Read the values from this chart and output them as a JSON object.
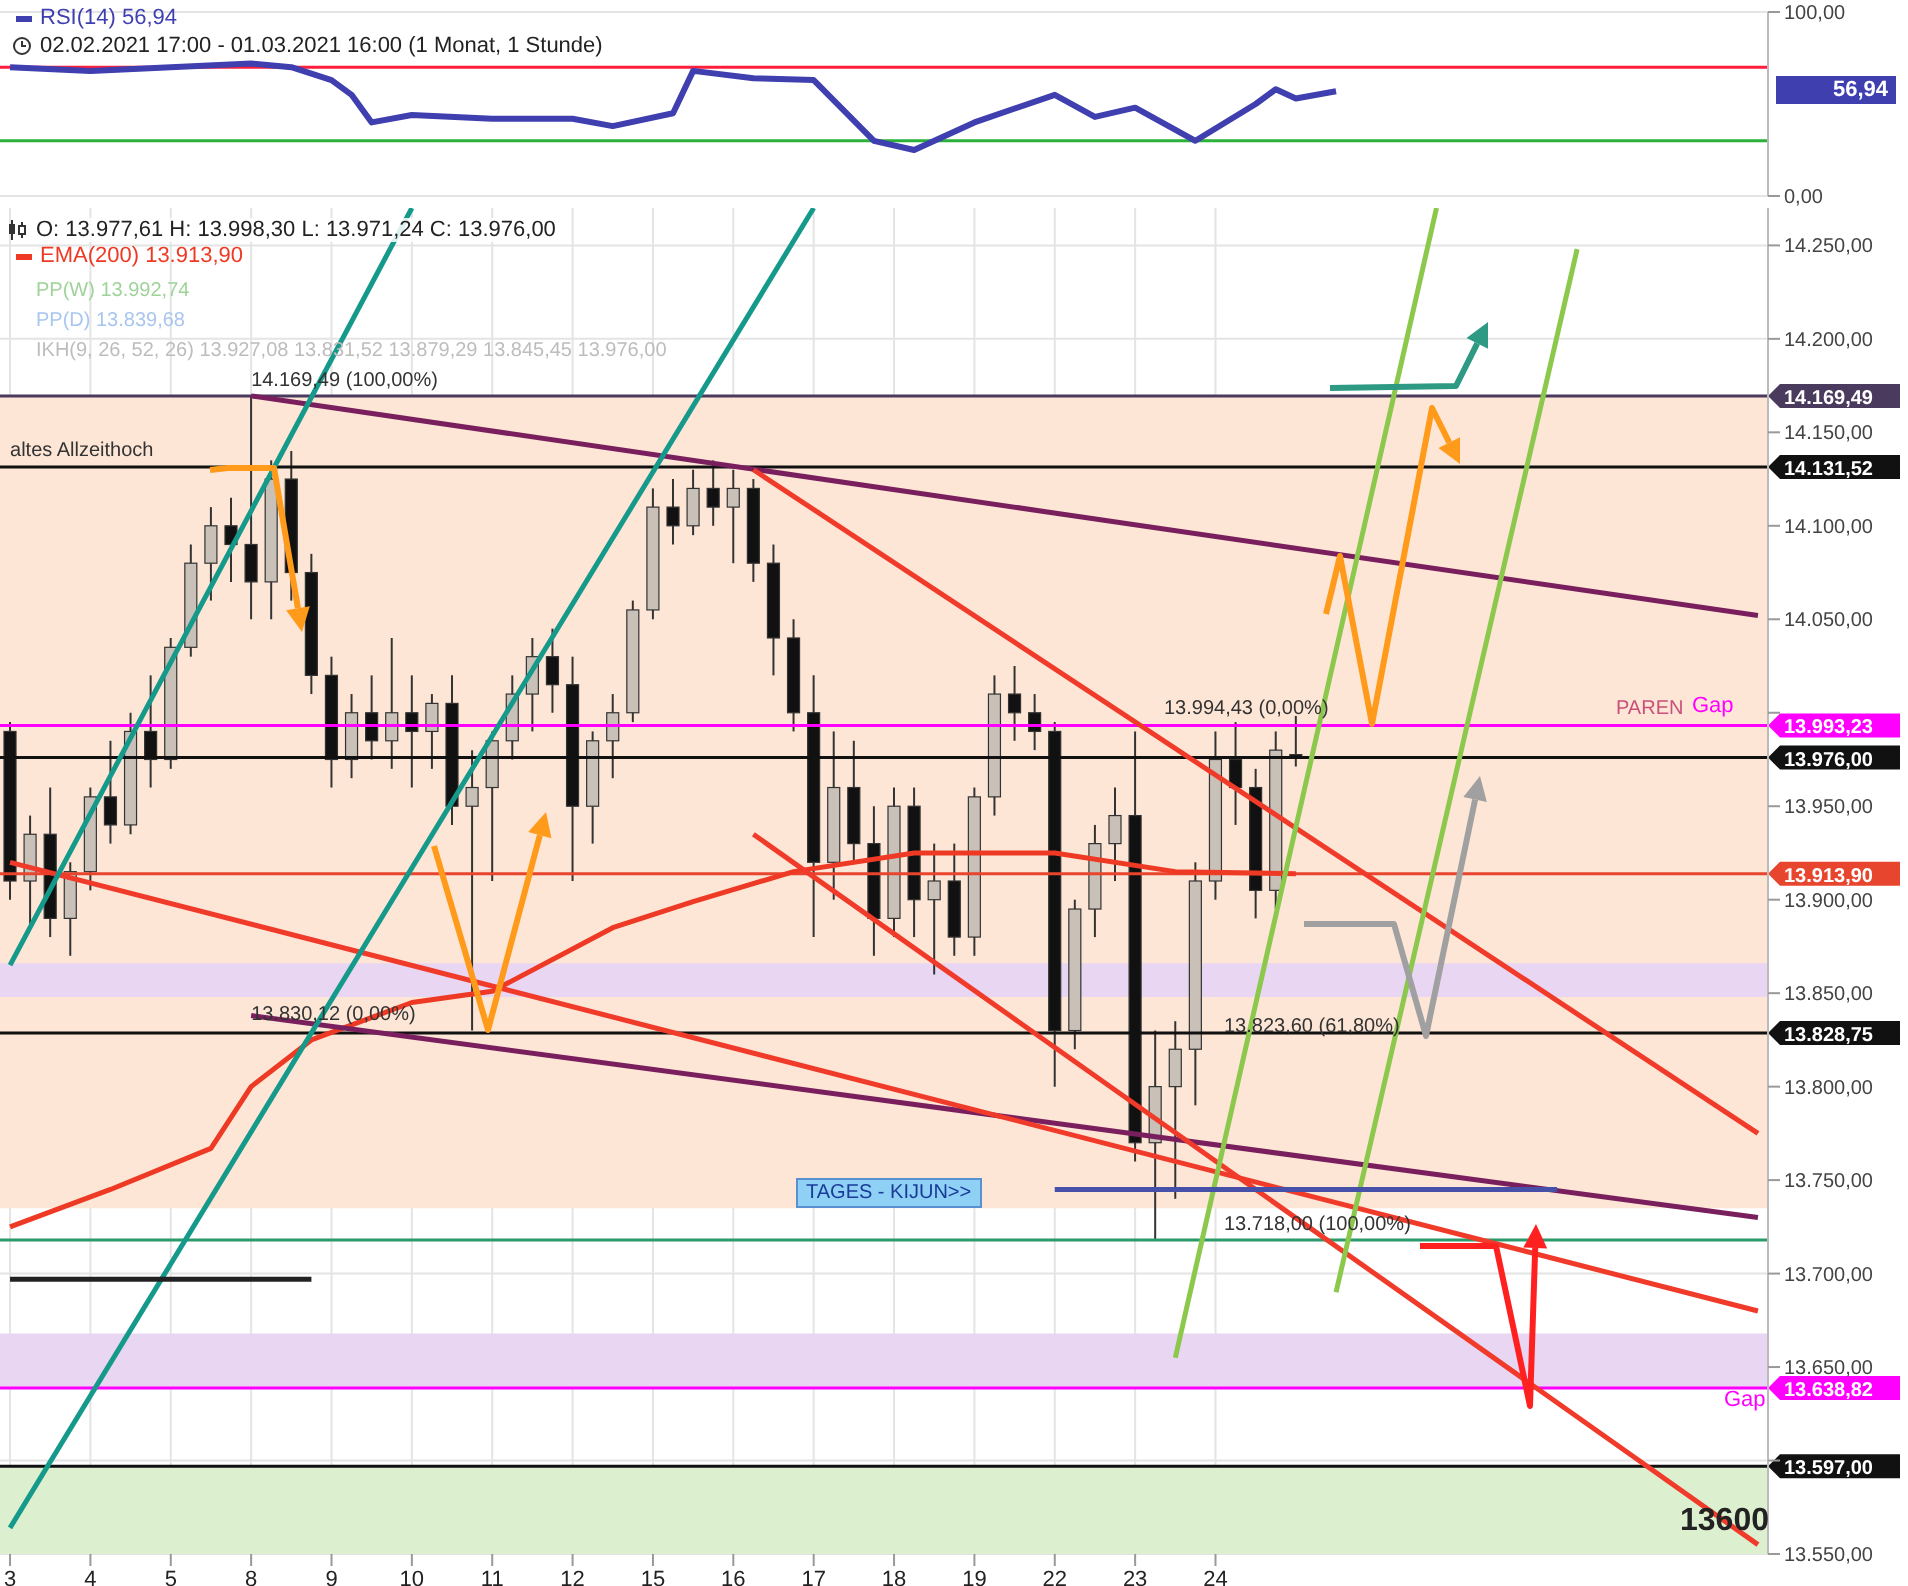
{
  "chart_data": [
    {
      "type": "line",
      "subtitle": "02.02.2021 17:00 - 01.03.2021 16:00  (1 Monat, 1 Stunde)",
      "categories": [
        "3",
        null,
        null,
        null,
        "4",
        null,
        null,
        null,
        "5",
        null,
        null,
        null,
        "8",
        null,
        null,
        null,
        "9",
        null,
        null,
        null,
        "10",
        null,
        null,
        null,
        "11",
        null,
        null,
        null,
        "12",
        null,
        null,
        null,
        "15",
        null,
        null,
        null,
        "16",
        null,
        null,
        null,
        "17",
        null,
        null,
        null,
        "18",
        null,
        null,
        null,
        "19",
        null,
        null,
        null,
        "22",
        null,
        null,
        null,
        "23",
        null,
        null,
        null,
        "24",
        null,
        null,
        null,
        null,
        null,
        null,
        null,
        null,
        null,
        null,
        null,
        null,
        null,
        null,
        null,
        null,
        null,
        null,
        null,
        null,
        null,
        null,
        null,
        null,
        null,
        null,
        null
      ],
      "ylim": [
        0,
        100
      ],
      "yticks": [
        {
          "value": 0,
          "label": "0,00"
        },
        {
          "value": 100,
          "label": "100,00"
        }
      ],
      "tick_labels": "y",
      "grid": true,
      "legend": "top left",
      "series": [
        {
          "name": "RSI(14) 56,94",
          "color": "#3f3fb0",
          "values": [
            70,
            null,
            null,
            null,
            68,
            null,
            null,
            null,
            70,
            null,
            null,
            null,
            72,
            null,
            70,
            null,
            63,
            55,
            40,
            null,
            44,
            null,
            null,
            null,
            42,
            null,
            null,
            null,
            42,
            null,
            38,
            null,
            null,
            45,
            68,
            null,
            null,
            64,
            null,
            null,
            63,
            null,
            null,
            30,
            null,
            25,
            null,
            null,
            40,
            null,
            null,
            null,
            55,
            null,
            43,
            null,
            48,
            null,
            null,
            30,
            null,
            null,
            50,
            58,
            53,
            null,
            56.94,
            null,
            null,
            null,
            null,
            null,
            null,
            null,
            null,
            null,
            null,
            null,
            null,
            null,
            null,
            null,
            null,
            null,
            null,
            null,
            null,
            null
          ]
        }
      ],
      "ref_lines": [
        {
          "axis": "y",
          "value": 70,
          "color": "#ff1f3d"
        },
        {
          "axis": "y",
          "value": 30,
          "color": "#2bb03a"
        }
      ],
      "annotations": [
        "56,94"
      ]
    },
    {
      "type": "candlestick",
      "title": "O: 13.977,61  H: 13.998,30  L: 13.971,24  C: 13.976,00",
      "legend": "top left",
      "grid": true,
      "categories": [
        "3",
        null,
        null,
        null,
        "4",
        null,
        null,
        null,
        "5",
        null,
        null,
        null,
        "8",
        null,
        null,
        null,
        "9",
        null,
        null,
        null,
        "10",
        null,
        null,
        null,
        "11",
        null,
        null,
        null,
        "12",
        null,
        null,
        null,
        "15",
        null,
        null,
        null,
        "16",
        null,
        null,
        null,
        "17",
        null,
        null,
        null,
        "18",
        null,
        null,
        null,
        "19",
        null,
        null,
        null,
        "22",
        null,
        null,
        null,
        "23",
        null,
        null,
        null,
        "24",
        null,
        null,
        null,
        null,
        null,
        null,
        null,
        null,
        null,
        null,
        null,
        null,
        null,
        null,
        null,
        null,
        null,
        null,
        null,
        null,
        null,
        null,
        null,
        null,
        null,
        null,
        null
      ],
      "ylim": [
        13550,
        14270
      ],
      "yticks": [
        {
          "value": 13550,
          "label": "13.550,00"
        },
        {
          "value": 13600,
          "label": null
        },
        {
          "value": 13650,
          "label": "13.650,00"
        },
        {
          "value": 13700,
          "label": "13.700,00"
        },
        {
          "value": 13750,
          "label": "13.750,00"
        },
        {
          "value": 13800,
          "label": "13.800,00"
        },
        {
          "value": 13850,
          "label": "13.850,00"
        },
        {
          "value": 13900,
          "label": "13.900,00"
        },
        {
          "value": 13950,
          "label": "13.950,00"
        },
        {
          "value": 14000,
          "label": null
        },
        {
          "value": 14050,
          "label": "14.050,00"
        },
        {
          "value": 14100,
          "label": "14.100,00"
        },
        {
          "value": 14150,
          "label": "14.150,00"
        },
        {
          "value": 14200,
          "label": "14.200,00"
        },
        {
          "value": 14250,
          "label": "14.250,00"
        }
      ],
      "ohlc": [
        [
          13990,
          13995,
          13900,
          13910
        ],
        [
          13910,
          13945,
          13885,
          13935
        ],
        [
          13935,
          13960,
          13880,
          13890
        ],
        [
          13890,
          13920,
          13870,
          13915
        ],
        [
          13915,
          13960,
          13905,
          13955
        ],
        [
          13955,
          13985,
          13930,
          13940
        ],
        [
          13940,
          14000,
          13935,
          13990
        ],
        [
          13990,
          14020,
          13960,
          13975
        ],
        [
          13975,
          14040,
          13970,
          14035
        ],
        [
          14035,
          14090,
          14030,
          14080
        ],
        [
          14080,
          14110,
          14060,
          14100
        ],
        [
          14100,
          14115,
          14070,
          14090
        ],
        [
          14090,
          14169.49,
          14050,
          14070
        ],
        [
          14070,
          14135,
          14050,
          14125
        ],
        [
          14125,
          14140,
          14060,
          14075
        ],
        [
          14075,
          14085,
          14010,
          14020
        ],
        [
          14020,
          14030,
          13960,
          13975
        ],
        [
          13975,
          14010,
          13965,
          14000
        ],
        [
          14000,
          14020,
          13975,
          13985
        ],
        [
          13985,
          14040,
          13970,
          14000
        ],
        [
          14000,
          14020,
          13960,
          13990
        ],
        [
          13990,
          14010,
          13970,
          14005
        ],
        [
          14005,
          14020,
          13940,
          13950
        ],
        [
          13950,
          13980,
          13830,
          13960
        ],
        [
          13960,
          13990,
          13910,
          13985
        ],
        [
          13985,
          14020,
          13975,
          14010
        ],
        [
          14010,
          14040,
          13990,
          14030
        ],
        [
          14030,
          14045,
          14000,
          14015
        ],
        [
          14015,
          14030,
          13910,
          13950
        ],
        [
          13950,
          13990,
          13930,
          13985
        ],
        [
          13985,
          14010,
          13965,
          14000
        ],
        [
          14000,
          14060,
          13995,
          14055
        ],
        [
          14055,
          14120,
          14050,
          14110
        ],
        [
          14110,
          14125,
          14090,
          14100
        ],
        [
          14100,
          14130,
          14095,
          14120
        ],
        [
          14120,
          14135,
          14100,
          14110
        ],
        [
          14110,
          14130,
          14080,
          14120
        ],
        [
          14120,
          14125,
          14070,
          14080
        ],
        [
          14080,
          14090,
          14020,
          14040
        ],
        [
          14040,
          14050,
          13990,
          14000
        ],
        [
          14000,
          14020,
          13880,
          13920
        ],
        [
          13920,
          13990,
          13900,
          13960
        ],
        [
          13960,
          13985,
          13920,
          13930
        ],
        [
          13930,
          13950,
          13870,
          13890
        ],
        [
          13890,
          13960,
          13880,
          13950
        ],
        [
          13950,
          13960,
          13880,
          13900
        ],
        [
          13900,
          13930,
          13860,
          13910
        ],
        [
          13910,
          13930,
          13870,
          13880
        ],
        [
          13880,
          13960,
          13870,
          13955
        ],
        [
          13955,
          14020,
          13945,
          14010
        ],
        [
          14010,
          14025,
          13985,
          14000
        ],
        [
          14000,
          14010,
          13980,
          13990
        ],
        [
          13990,
          13995,
          13800,
          13830
        ],
        [
          13830,
          13900,
          13820,
          13895
        ],
        [
          13895,
          13940,
          13880,
          13930
        ],
        [
          13930,
          13960,
          13910,
          13945
        ],
        [
          13945,
          13990,
          13760,
          13770
        ],
        [
          13770,
          13830,
          13718,
          13800
        ],
        [
          13800,
          13835,
          13740,
          13820
        ],
        [
          13820,
          13920,
          13790,
          13910
        ],
        [
          13910,
          13990,
          13900,
          13975
        ],
        [
          13975,
          13995,
          13940,
          13960
        ],
        [
          13960,
          13970,
          13890,
          13905
        ],
        [
          13905,
          13990,
          13895,
          13980
        ],
        [
          13977.61,
          13998.3,
          13971.24,
          13976
        ],
        null,
        null,
        null,
        null,
        null,
        null,
        null,
        null,
        null,
        null,
        null,
        null,
        null,
        null,
        null,
        null,
        null,
        null,
        null,
        null,
        null,
        null,
        null
      ],
      "series": [
        {
          "name": "EMA(200) 13.913,90",
          "type": "line",
          "color": "#ee3a24",
          "values": [
            13725,
            null,
            null,
            null,
            null,
            13745,
            null,
            null,
            null,
            null,
            13767,
            null,
            13800,
            null,
            null,
            13825,
            null,
            null,
            null,
            null,
            13845,
            null,
            null,
            null,
            13851,
            null,
            null,
            null,
            null,
            null,
            13885,
            null,
            null,
            null,
            13899,
            null,
            null,
            null,
            null,
            13915,
            null,
            null,
            null,
            null,
            null,
            13925,
            null,
            null,
            null,
            null,
            null,
            null,
            13925,
            null,
            null,
            null,
            null,
            null,
            13915,
            null,
            null,
            null,
            null,
            null,
            13913.9,
            null,
            null,
            null,
            null,
            null,
            null,
            null,
            null,
            null,
            null,
            null,
            null,
            null,
            null,
            null,
            null,
            null,
            null,
            null,
            null,
            null,
            null,
            null
          ]
        },
        {
          "type": "line",
          "color": "#7a1f5e",
          "values": [
            null,
            null,
            null,
            null,
            null,
            null,
            null,
            null,
            null,
            null,
            null,
            null,
            14169.49,
            null,
            null,
            null,
            null,
            null,
            null,
            null,
            null,
            null,
            null,
            null,
            null,
            null,
            null,
            null,
            null,
            null,
            null,
            null,
            null,
            null,
            null,
            null,
            null,
            null,
            null,
            null,
            null,
            null,
            null,
            null,
            null,
            null,
            null,
            null,
            null,
            null,
            null,
            null,
            null,
            null,
            null,
            null,
            null,
            null,
            null,
            null,
            null,
            null,
            null,
            null,
            null,
            null,
            null,
            null,
            null,
            null,
            null,
            null,
            null,
            null,
            null,
            null,
            null,
            null,
            null,
            null,
            null,
            null,
            null,
            null,
            null,
            null,
            null,
            14052
          ]
        },
        {
          "type": "line",
          "color": "#7a1f5e",
          "values": [
            null,
            null,
            null,
            null,
            null,
            null,
            null,
            null,
            null,
            null,
            null,
            null,
            13838,
            null,
            null,
            null,
            null,
            null,
            null,
            null,
            null,
            null,
            null,
            null,
            null,
            null,
            null,
            null,
            null,
            null,
            null,
            null,
            null,
            null,
            null,
            null,
            null,
            null,
            null,
            null,
            null,
            null,
            null,
            null,
            null,
            null,
            null,
            null,
            null,
            null,
            null,
            null,
            null,
            null,
            null,
            null,
            null,
            null,
            null,
            null,
            null,
            null,
            null,
            null,
            null,
            null,
            null,
            null,
            null,
            null,
            null,
            null,
            null,
            null,
            null,
            null,
            null,
            null,
            null,
            null,
            null,
            null,
            null,
            null,
            null,
            null,
            null,
            13730
          ]
        },
        {
          "type": "line",
          "color": "#f03a2a",
          "values": [
            13920,
            null,
            null,
            null,
            null,
            null,
            null,
            null,
            null,
            null,
            null,
            null,
            null,
            null,
            null,
            null,
            null,
            null,
            null,
            null,
            null,
            null,
            null,
            null,
            null,
            null,
            null,
            null,
            null,
            null,
            null,
            null,
            null,
            null,
            null,
            null,
            null,
            null,
            null,
            null,
            null,
            null,
            null,
            null,
            null,
            null,
            null,
            null,
            null,
            null,
            null,
            null,
            null,
            null,
            null,
            null,
            null,
            null,
            null,
            null,
            null,
            null,
            null,
            null,
            null,
            null,
            null,
            null,
            null,
            null,
            null,
            null,
            null,
            null,
            null,
            null,
            null,
            null,
            null,
            null,
            null,
            null,
            null,
            null,
            null,
            null,
            null,
            13680
          ]
        },
        {
          "type": "line",
          "color": "#f03a2a",
          "values": [
            null,
            null,
            null,
            null,
            null,
            null,
            null,
            null,
            null,
            null,
            null,
            null,
            null,
            null,
            null,
            null,
            null,
            null,
            null,
            null,
            null,
            null,
            null,
            null,
            null,
            null,
            null,
            null,
            null,
            null,
            null,
            null,
            null,
            null,
            null,
            null,
            null,
            14130,
            null,
            null,
            null,
            null,
            null,
            null,
            null,
            null,
            null,
            null,
            null,
            null,
            null,
            null,
            null,
            null,
            null,
            null,
            null,
            null,
            null,
            null,
            null,
            null,
            null,
            null,
            null,
            null,
            null,
            null,
            null,
            null,
            null,
            null,
            null,
            null,
            null,
            null,
            null,
            null,
            null,
            null,
            null,
            null,
            null,
            null,
            null,
            null,
            null,
            13775
          ]
        },
        {
          "type": "line",
          "color": "#f03a2a",
          "values": [
            null,
            null,
            null,
            null,
            null,
            null,
            null,
            null,
            null,
            null,
            null,
            null,
            null,
            null,
            null,
            null,
            null,
            null,
            null,
            null,
            null,
            null,
            null,
            null,
            null,
            null,
            null,
            null,
            null,
            null,
            null,
            null,
            null,
            null,
            null,
            null,
            null,
            13935,
            null,
            null,
            null,
            null,
            null,
            null,
            null,
            null,
            null,
            null,
            null,
            null,
            null,
            null,
            null,
            null,
            null,
            null,
            null,
            null,
            null,
            null,
            null,
            null,
            null,
            null,
            null,
            null,
            null,
            null,
            null,
            null,
            null,
            null,
            null,
            null,
            null,
            null,
            null,
            null,
            null,
            null,
            null,
            null,
            null,
            null,
            null,
            null,
            null,
            13555
          ]
        },
        {
          "type": "line",
          "color": "#14998a",
          "values": [
            13564,
            null,
            null,
            null,
            null,
            null,
            null,
            null,
            null,
            null,
            null,
            null,
            null,
            null,
            null,
            null,
            null,
            null,
            null,
            null,
            null,
            null,
            null,
            null,
            null,
            null,
            null,
            null,
            null,
            null,
            null,
            null,
            null,
            null,
            null,
            null,
            null,
            null,
            null,
            null,
            14270,
            null,
            null,
            null,
            null,
            null,
            null,
            null,
            null,
            null,
            null,
            null,
            null,
            null,
            null,
            null,
            null,
            null,
            null,
            null,
            null,
            null,
            null,
            null,
            null,
            null,
            null,
            null,
            null,
            null,
            null,
            null,
            null,
            null,
            null,
            null,
            null,
            null,
            null,
            null,
            null,
            null,
            null,
            null,
            null,
            null,
            null,
            null
          ]
        },
        {
          "type": "line",
          "color": "#14998a",
          "values": [
            13865,
            null,
            null,
            null,
            null,
            null,
            null,
            null,
            null,
            null,
            null,
            null,
            null,
            null,
            null,
            null,
            null,
            null,
            null,
            null,
            14270,
            null,
            null,
            null,
            null,
            null,
            null,
            null,
            null,
            null,
            null,
            null,
            null,
            null,
            null,
            null,
            null,
            null,
            null,
            null,
            null,
            null,
            null,
            null,
            null,
            null,
            null,
            null,
            null,
            null,
            null,
            null,
            null,
            null,
            null,
            null,
            null,
            null,
            null,
            null,
            null,
            null,
            null,
            null,
            null,
            null,
            null,
            null,
            null,
            null,
            null,
            null,
            null,
            null,
            null,
            null,
            null,
            null,
            null,
            null,
            null,
            null,
            null,
            null,
            null,
            null,
            null,
            null
          ]
        },
        {
          "type": "line",
          "color": "#8cc84b",
          "values": [
            null,
            null,
            null,
            null,
            null,
            null,
            null,
            null,
            null,
            null,
            null,
            null,
            null,
            null,
            null,
            null,
            null,
            null,
            null,
            null,
            null,
            null,
            null,
            null,
            null,
            null,
            null,
            null,
            null,
            null,
            null,
            null,
            null,
            null,
            null,
            null,
            null,
            null,
            null,
            null,
            null,
            null,
            null,
            null,
            null,
            null,
            null,
            null,
            null,
            null,
            null,
            null,
            null,
            null,
            null,
            null,
            null,
            null,
            13655,
            null,
            null,
            null,
            null,
            null,
            null,
            null,
            null,
            null,
            null,
            null,
            null,
            14270,
            null,
            null,
            null,
            null,
            null,
            null,
            null,
            null,
            null,
            null,
            null,
            null,
            null,
            null,
            null,
            null
          ]
        },
        {
          "type": "line",
          "color": "#8cc84b",
          "values": [
            null,
            null,
            null,
            null,
            null,
            null,
            null,
            null,
            null,
            null,
            null,
            null,
            null,
            null,
            null,
            null,
            null,
            null,
            null,
            null,
            null,
            null,
            null,
            null,
            null,
            null,
            null,
            null,
            null,
            null,
            null,
            null,
            null,
            null,
            null,
            null,
            null,
            null,
            null,
            null,
            null,
            null,
            null,
            null,
            null,
            null,
            null,
            null,
            null,
            null,
            null,
            null,
            null,
            null,
            null,
            null,
            null,
            null,
            null,
            null,
            null,
            null,
            null,
            null,
            null,
            null,
            13690,
            null,
            null,
            null,
            null,
            null,
            null,
            null,
            null,
            null,
            null,
            null,
            14248,
            null,
            null,
            null,
            null,
            null,
            null,
            null,
            null,
            null
          ]
        },
        {
          "type": "line",
          "color": "#4650a8",
          "values": [
            null,
            null,
            null,
            null,
            null,
            null,
            null,
            null,
            null,
            null,
            null,
            null,
            null,
            null,
            null,
            null,
            null,
            null,
            null,
            null,
            null,
            null,
            null,
            null,
            null,
            null,
            null,
            null,
            null,
            null,
            null,
            null,
            null,
            null,
            null,
            null,
            null,
            null,
            null,
            null,
            null,
            null,
            null,
            null,
            null,
            null,
            null,
            null,
            null,
            null,
            null,
            null,
            13745,
            null,
            null,
            null,
            null,
            null,
            null,
            null,
            null,
            null,
            null,
            null,
            null,
            null,
            null,
            null,
            null,
            null,
            null,
            null,
            null,
            null,
            null,
            null,
            null,
            13745,
            null,
            null,
            null,
            null,
            null,
            null,
            null,
            null,
            null,
            null
          ]
        },
        {
          "type": "line",
          "color": "#222222",
          "values": [
            13697,
            null,
            null,
            null,
            null,
            null,
            null,
            null,
            null,
            null,
            null,
            null,
            null,
            null,
            null,
            13697,
            null,
            null,
            null,
            null,
            null,
            null,
            null,
            null,
            null,
            null,
            null,
            null,
            null,
            null,
            null,
            null,
            null,
            null,
            null,
            null,
            null,
            null,
            null,
            null,
            null,
            null,
            null,
            null,
            null,
            null,
            null,
            null,
            null,
            null,
            null,
            null,
            null,
            null,
            null,
            null,
            null,
            null,
            null,
            null,
            null,
            null,
            null,
            null,
            null,
            null,
            null,
            null,
            null,
            null,
            null,
            null,
            null,
            null,
            null,
            null,
            null,
            null,
            null,
            null,
            null,
            null,
            null,
            null,
            null,
            null,
            null,
            null
          ]
        }
      ],
      "ref_lines": [
        {
          "axis": "y",
          "value": 14169.49,
          "label": "14.169,49",
          "color": "#4a3a5e"
        },
        {
          "axis": "y",
          "value": 14131.52,
          "label": "14.131,52",
          "color": "#111111"
        },
        {
          "axis": "y",
          "value": 13993.23,
          "label": "13.993,23",
          "color": "#ff00ff"
        },
        {
          "axis": "y",
          "value": 13976,
          "label": "13.976,00",
          "color": "#111111"
        },
        {
          "axis": "y",
          "value": 13913.9,
          "label": "13.913,90",
          "color": "#e8452f"
        },
        {
          "axis": "y",
          "value": 13828.75,
          "label": "13.828,75",
          "color": "#111111"
        },
        {
          "axis": "y",
          "value": 13718,
          "color": "#2a9a6a"
        },
        {
          "axis": "y",
          "value": 13638.82,
          "label": "13.638,82",
          "color": "#ff00ff"
        },
        {
          "axis": "y",
          "value": 13597,
          "label": "13.597,00",
          "color": "#111111"
        }
      ],
      "bands": [
        {
          "axis": "y",
          "from": 13735,
          "to": 14169.49,
          "color": "#fde6d6"
        },
        {
          "axis": "y",
          "from": 13848,
          "to": 13866,
          "color": "#e8d6f2"
        },
        {
          "axis": "y",
          "from": 13638.82,
          "to": 13668,
          "color": "#e8d6f2"
        },
        {
          "axis": "y",
          "from": 13550,
          "to": 13597,
          "color": "#dcefcf"
        }
      ],
      "annotations": [
        {
          "text": "altes Allzeithoch",
          "x": "3",
          "y": 14131.52
        },
        {
          "text": "14.169,49 (100,00%)",
          "x": "8",
          "y": 14169.49
        },
        {
          "text": "13.830,12 (0,00%)",
          "x": "8",
          "y": 13830.12
        },
        {
          "text": "13.994,43 (0,00%)",
          "y": 13994.43
        },
        {
          "text": "13.823,60 (61,80%)",
          "y": 13823.6
        },
        {
          "text": "13.718,00 (100,00%)",
          "y": 13718
        },
        "TAGES - KIJUN>>",
        "PP(W) 13.992,74",
        "PP(D) 13.839,68",
        "IKH(9, 26, 52, 26) 13.927,08  13.831,52  13.879,29  13.845,45  13.976,00",
        "13600",
        "PAREN",
        "Gap",
        "Gap"
      ]
    }
  ]
}
